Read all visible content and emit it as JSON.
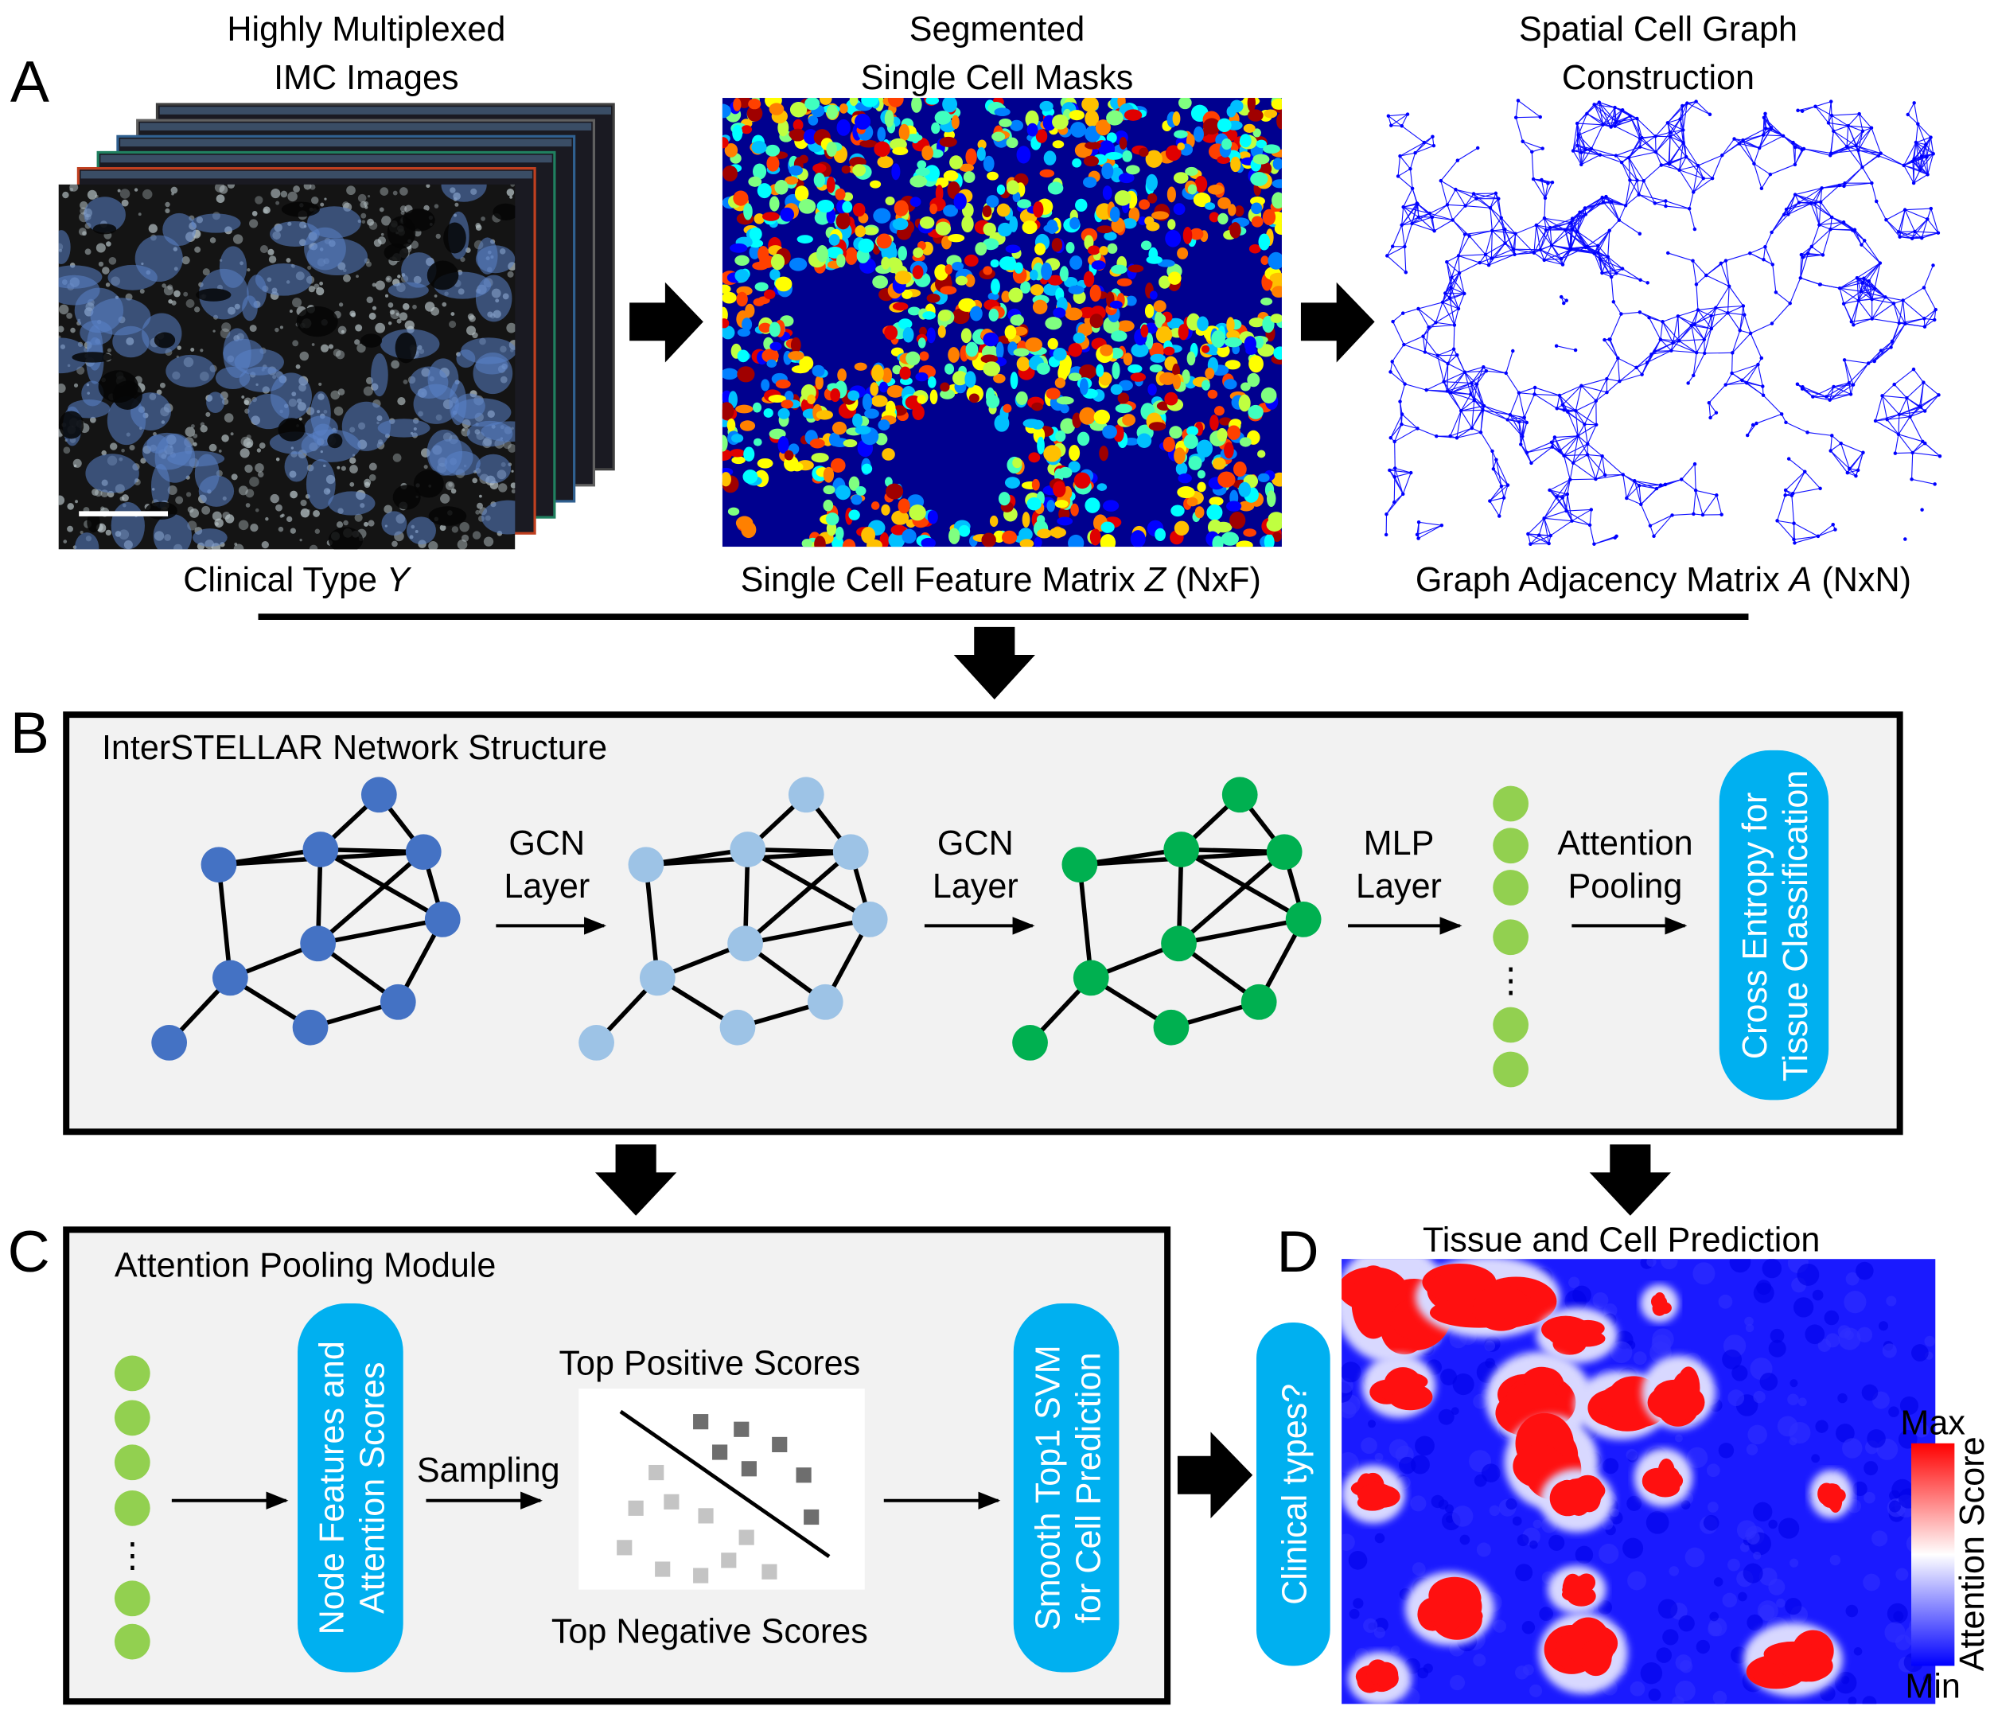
{
  "panel_a": {
    "label": "A",
    "titles": [
      [
        "Highly Multiplexed",
        "IMC Images"
      ],
      [
        "Segmented",
        "Single Cell Masks"
      ],
      [
        "Spatial Cell Graph",
        "Construction"
      ]
    ],
    "captions": [
      [
        "Clinical Type ",
        "Y"
      ],
      [
        "Single Cell Feature Matrix ",
        "Z",
        " (NxF)"
      ],
      [
        "Graph Adjacency Matrix ",
        "A",
        " (NxN)"
      ]
    ]
  },
  "panel_b": {
    "label": "B",
    "title": "InterSTELLAR Network Structure",
    "steps": [
      [
        "GCN",
        "Layer"
      ],
      [
        "GCN",
        "Layer"
      ],
      [
        "MLP",
        "Layer"
      ],
      [
        "Attention",
        "Pooling"
      ]
    ],
    "ellipsis": "⋮",
    "output": [
      "Cross Entropy for",
      "Tissue Classification"
    ]
  },
  "panel_c": {
    "label": "C",
    "title": "Attention Pooling Module",
    "ellipsis": "⋮",
    "features": [
      "Node Features and",
      "Attention Scores"
    ],
    "sampling": "Sampling",
    "top_positive": "Top Positive Scores",
    "top_negative": "Top Negative Scores",
    "output": [
      "Smooth Top1 SVM",
      "for Cell Prediction"
    ]
  },
  "panel_d": {
    "label": "D",
    "title": "Tissue and Cell Prediction",
    "question": "Clinical types?",
    "colorbar_max": "Max",
    "colorbar_min": "Min",
    "colorbar_label": "Attention Score"
  }
}
